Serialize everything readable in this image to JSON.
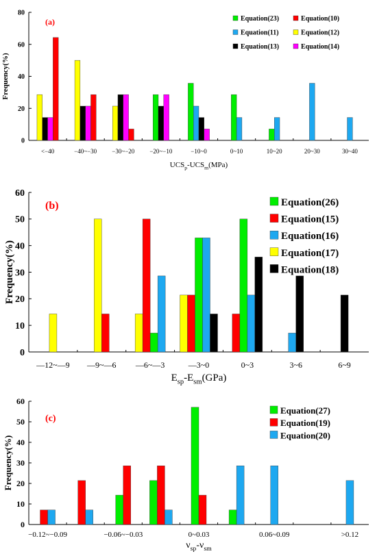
{
  "chart_data": [
    {
      "panel": "(a)",
      "type": "bar",
      "ylabel": "Frequency(%)",
      "xlabel": "UCSp-UCSm(MPa)",
      "xlabel_main": "UCS",
      "xlabel_sub1": "p",
      "xlabel_mid": "-UCS",
      "xlabel_sub2": "m",
      "xlabel_tail": "(MPa)",
      "ylim": [
        0,
        80
      ],
      "yticks": [
        "0",
        "20",
        "40",
        "60",
        "80"
      ],
      "legend_placement": "top-right",
      "categories": [
        "<−40",
        "−40~−30",
        "−30~−20",
        "−20~−10",
        "−10~0",
        "0~10",
        "10~20",
        "20~30",
        "30~40"
      ],
      "series": [
        {
          "name": "Equation(10)",
          "color": "#ff0000",
          "values": [
            64.3,
            28.6,
            7.1,
            0,
            0,
            0,
            0,
            0,
            0
          ]
        },
        {
          "name": "Equation(12)",
          "color": "#ffff00",
          "values": [
            28.6,
            50,
            21.4,
            0,
            0,
            0,
            0,
            0,
            0
          ]
        },
        {
          "name": "Equation(13)",
          "color": "#000000",
          "values": [
            14.3,
            21.4,
            28.6,
            21.4,
            14.3,
            0,
            0,
            0,
            0
          ]
        },
        {
          "name": "Equation(14)",
          "color": "#ff00ff",
          "values": [
            14.3,
            21.4,
            28.6,
            28.6,
            7.1,
            0,
            0,
            0,
            0
          ]
        },
        {
          "name": "Equation(23)",
          "color": "#00ee00",
          "values": [
            0,
            0,
            0,
            28.6,
            35.7,
            28.6,
            7.1,
            0,
            0
          ]
        },
        {
          "name": "Equation(11)",
          "color": "#1ea8f0",
          "values": [
            0,
            0,
            0,
            0,
            21.4,
            14.3,
            14.3,
            35.7,
            14.3
          ]
        }
      ],
      "legend": [
        "Equation(23)",
        "Equation(10)",
        "Equation(11)",
        "Equation(12)",
        "Equation(13)",
        "Equation(14)"
      ]
    },
    {
      "panel": "(b)",
      "type": "bar",
      "ylabel": "Frequency(%)",
      "xlabel": "Esp-Esm(GPa)",
      "xlabel_main": "E",
      "xlabel_sub1": "sp",
      "xlabel_mid": "-E",
      "xlabel_sub2": "sm",
      "xlabel_tail": "(GPa)",
      "ylim": [
        0,
        60
      ],
      "yticks": [
        "0",
        "10",
        "20",
        "30",
        "40",
        "50",
        "60"
      ],
      "legend_placement": "top-right",
      "categories": [
        "—12~—9",
        "—9~—6",
        "—6~—3",
        "—3~0",
        "0~3",
        "3~6",
        "6~9"
      ],
      "series": [
        {
          "name": "Equation(17)",
          "color": "#ffff00",
          "values": [
            14.3,
            50,
            14.3,
            21.4,
            0,
            0,
            0
          ]
        },
        {
          "name": "Equation(15)",
          "color": "#ff0000",
          "values": [
            0,
            14.3,
            50,
            21.4,
            14.3,
            0,
            0
          ]
        },
        {
          "name": "Equation(26)",
          "color": "#00ee00",
          "values": [
            0,
            0,
            7.1,
            42.9,
            50,
            0,
            0
          ]
        },
        {
          "name": "Equation(16)",
          "color": "#1ea8f0",
          "values": [
            0,
            0,
            28.6,
            42.9,
            21.4,
            7.1,
            0
          ]
        },
        {
          "name": "Equation(18)",
          "color": "#000000",
          "values": [
            0,
            0,
            0,
            14.3,
            35.7,
            28.6,
            21.4
          ]
        }
      ],
      "legend": [
        "Equation(26)",
        "Equation(15)",
        "Equation(16)",
        "Equation(17)",
        "Equation(18)"
      ]
    },
    {
      "panel": "(c)",
      "type": "bar",
      "ylabel": "Frequency(%)",
      "xlabel": "νsp-νsm",
      "xlabel_main": "ν",
      "xlabel_sub1": "sp",
      "xlabel_mid": "-ν",
      "xlabel_sub2": "sm",
      "xlabel_tail": "",
      "ylim": [
        0,
        60
      ],
      "yticks": [
        "0",
        "10",
        "20",
        "30",
        "40",
        "50",
        "60"
      ],
      "legend_placement": "top-right",
      "categories": [
        "−0.12~−0.09",
        "",
        "−0.06~−0.03",
        "",
        "0~0.03",
        "",
        "0.06~0.09",
        "",
        ">0.12"
      ],
      "series": [
        {
          "name": "Equation(27)",
          "color": "#00ee00",
          "values": [
            0,
            0,
            14.3,
            21.4,
            57.1,
            7.1,
            0,
            0,
            0
          ]
        },
        {
          "name": "Equation(19)",
          "color": "#ff0000",
          "values": [
            7.1,
            21.4,
            28.6,
            28.6,
            14.3,
            0,
            0,
            0,
            0
          ]
        },
        {
          "name": "Equation(20)",
          "color": "#1ea8f0",
          "values": [
            7.1,
            7.1,
            0,
            7.1,
            0,
            28.6,
            28.6,
            0,
            21.4
          ]
        }
      ],
      "legend": [
        "Equation(27)",
        "Equation(19)",
        "Equation(20)"
      ]
    }
  ]
}
